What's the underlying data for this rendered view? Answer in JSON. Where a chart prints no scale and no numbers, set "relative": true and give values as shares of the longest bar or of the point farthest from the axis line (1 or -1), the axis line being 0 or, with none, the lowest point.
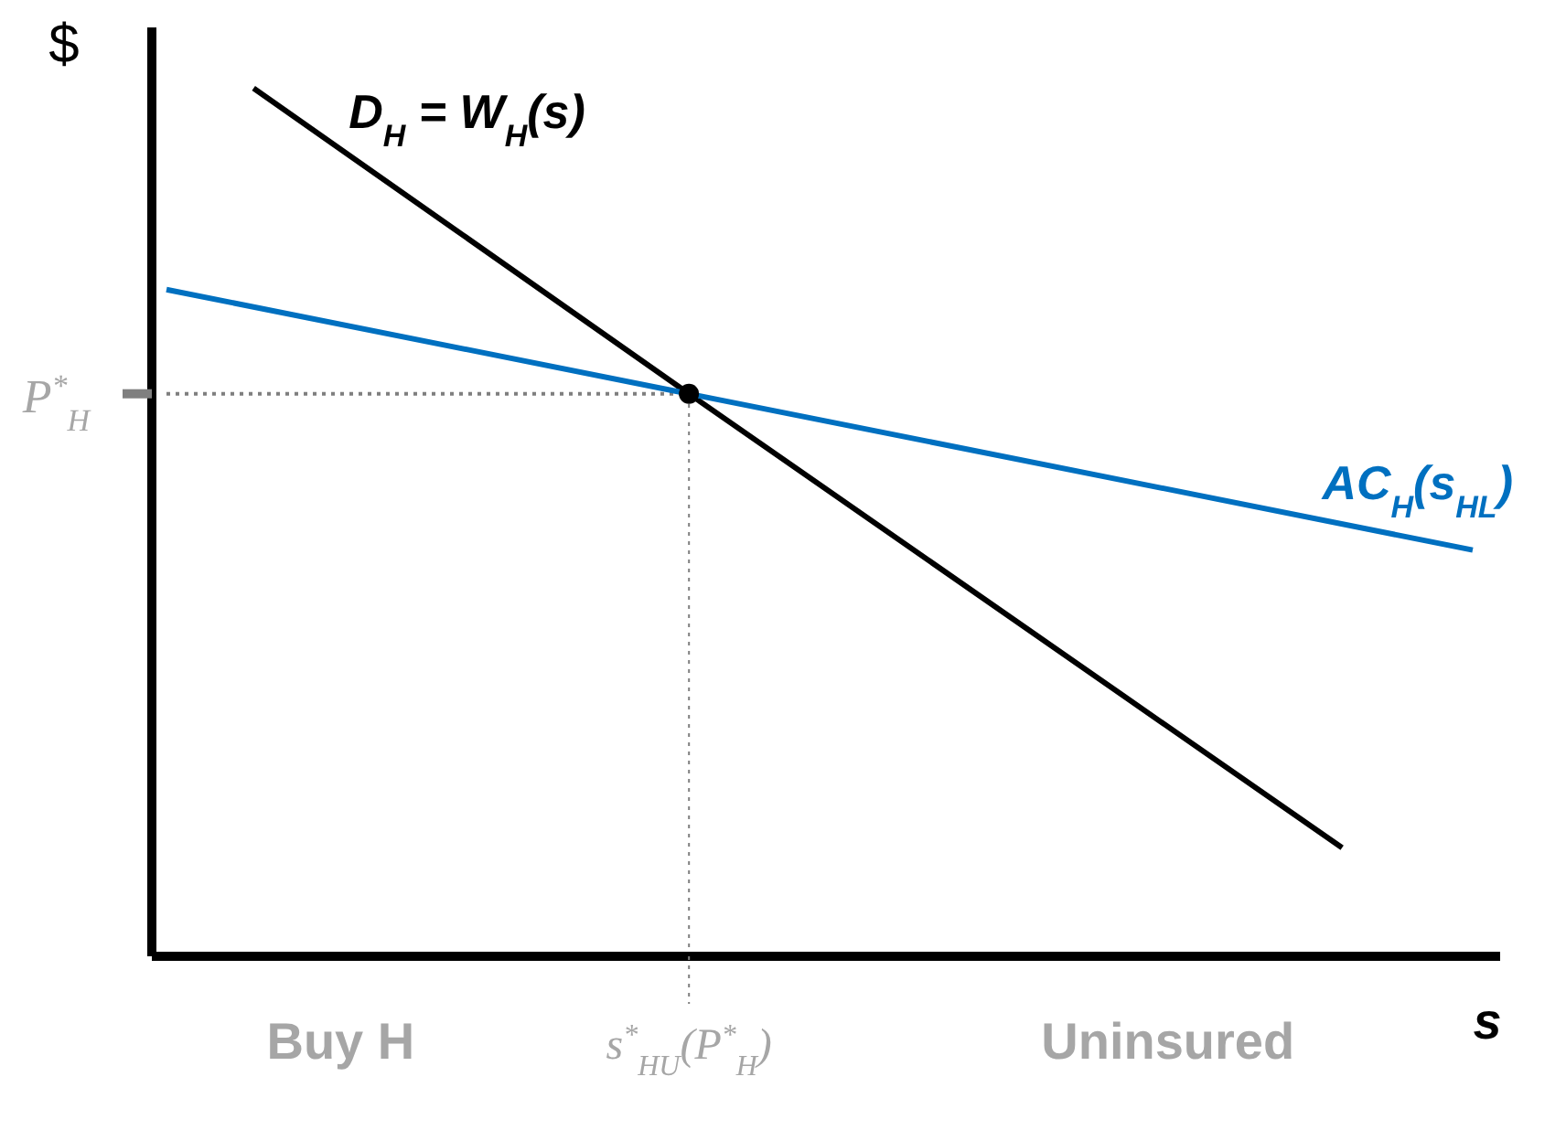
{
  "chart_data": {
    "type": "line",
    "relative": true,
    "xlabel": "s",
    "ylabel": "$",
    "tick_labels": "x",
    "marker": "none",
    "line_style": "solid",
    "categories": [
      null,
      null,
      null,
      null,
      "Buy H",
      null,
      null,
      null,
      null,
      null,
      null,
      null,
      "s$^{*}$$_{HU}$(P$^{*}$$_{H}$)",
      null,
      null,
      null,
      null,
      null,
      null,
      null,
      null,
      null,
      null,
      "Uninsured",
      null,
      null,
      null,
      null,
      null,
      null,
      null
    ],
    "series": [
      {
        "name": "D$_{H}$ = W$_{H}$(s)",
        "color": "#000000",
        "values": [
          null,
          null,
          1,
          null,
          null,
          null,
          null,
          null,
          null,
          null,
          null,
          null,
          0.648,
          null,
          null,
          null,
          null,
          null,
          null,
          null,
          null,
          null,
          null,
          null,
          null,
          null,
          null,
          0.125,
          null,
          null,
          null
        ]
      },
      {
        "name": "AC$_{H}$(s$_{HL}$)",
        "color": "#0070c0",
        "values": [
          0.768,
          null,
          null,
          null,
          null,
          null,
          null,
          null,
          null,
          null,
          null,
          null,
          0.648,
          null,
          null,
          null,
          null,
          null,
          null,
          null,
          null,
          null,
          null,
          null,
          null,
          null,
          null,
          null,
          null,
          null,
          0.468
        ]
      }
    ],
    "ref_lines": [
      {
        "axis": "y",
        "value": 0.648,
        "label": "P$^{*}$$_{H}$",
        "color": "#7f7f7f",
        "line_style": "dotted"
      },
      {
        "axis": "x",
        "value": "s$^{*}$$_{HU}$(P$^{*}$$_{H}$)",
        "color": "#7f7f7f",
        "line_style": "dotted"
      }
    ]
  }
}
